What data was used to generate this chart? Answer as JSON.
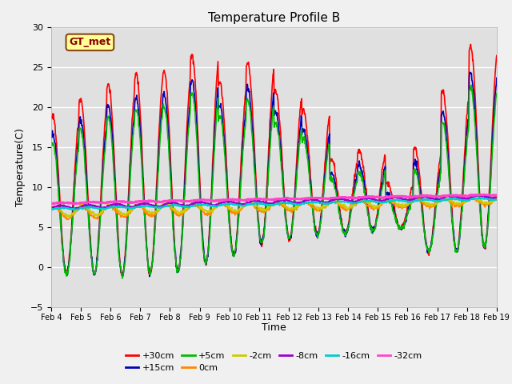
{
  "title": "Temperature Profile B",
  "xlabel": "Time",
  "ylabel": "Temperature(C)",
  "ylim": [
    -5,
    30
  ],
  "yticks": [
    -5,
    0,
    5,
    10,
    15,
    20,
    25,
    30
  ],
  "fig_bg": "#f0f0f0",
  "plot_bg": "#e0e0e0",
  "annotation_text": "GT_met",
  "annotation_box_color": "#ffff99",
  "annotation_border_color": "#8B4513",
  "series": [
    {
      "label": "+30cm",
      "color": "#ff0000",
      "lw": 1.2
    },
    {
      "label": "+15cm",
      "color": "#0000bb",
      "lw": 1.2
    },
    {
      "label": "+5cm",
      "color": "#00bb00",
      "lw": 1.2
    },
    {
      "label": "0cm",
      "color": "#ff8800",
      "lw": 1.2
    },
    {
      "label": "-2cm",
      "color": "#cccc00",
      "lw": 1.2
    },
    {
      "label": "-8cm",
      "color": "#9900cc",
      "lw": 1.5
    },
    {
      "label": "-16cm",
      "color": "#00cccc",
      "lw": 1.5
    },
    {
      "label": "-32cm",
      "color": "#ff44cc",
      "lw": 2.0
    }
  ],
  "xtick_labels": [
    "Feb 4",
    "Feb 5",
    "Feb 6",
    "Feb 7",
    "Feb 8",
    "Feb 9",
    "Feb 10",
    "Feb 11",
    "Feb 12",
    "Feb 13",
    "Feb 14",
    "Feb 15",
    "Feb 16",
    "Feb 17",
    "Feb 18",
    "Feb 19"
  ],
  "xtick_positions": [
    4,
    5,
    6,
    7,
    8,
    9,
    10,
    11,
    12,
    13,
    14,
    15,
    16,
    17,
    18,
    19
  ],
  "n_days": 16,
  "pts_per_day": 72
}
